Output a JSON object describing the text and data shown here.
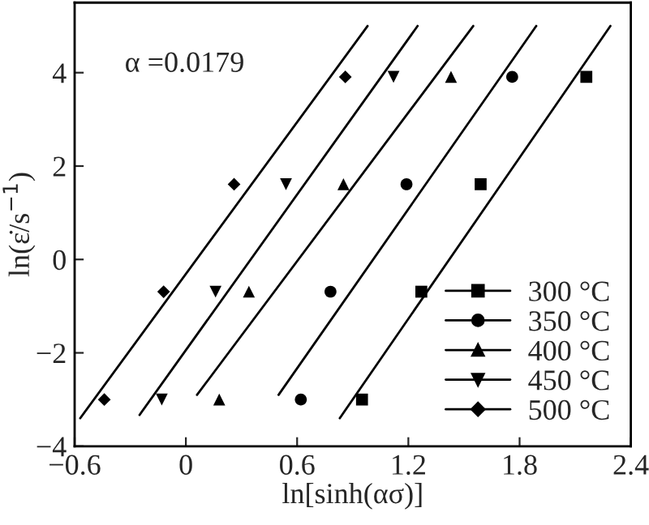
{
  "chart_data": {
    "type": "scatter",
    "xlabel": "ln[sinh(ασ)]",
    "ylabel": "ln(ε̇/s$^{−1}$)",
    "annotations": [
      "α =0.0179"
    ],
    "xlim": [
      -0.6,
      2.4
    ],
    "ylim": [
      -4,
      5.5
    ],
    "xticks": [
      -0.6,
      0,
      0.6,
      1.2,
      1.8,
      2.4
    ],
    "yticks": [
      -4,
      -2,
      0,
      2,
      4
    ],
    "grid": false,
    "legend": "bottom right",
    "series": [
      {
        "name": "300 °C",
        "color": "#000000",
        "marker": "square",
        "x": [
          0.95,
          1.27,
          1.59,
          2.16
        ],
        "values": [
          -3.0,
          -0.69,
          1.61,
          3.91
        ]
      },
      {
        "name": "350 °C",
        "color": "#000000",
        "marker": "circle",
        "x": [
          0.62,
          0.78,
          1.19,
          1.76
        ],
        "values": [
          -3.0,
          -0.69,
          1.61,
          3.91
        ]
      },
      {
        "name": "400 °C",
        "color": "#000000",
        "marker": "triangle",
        "x": [
          0.18,
          0.34,
          0.85,
          1.43
        ],
        "values": [
          -3.0,
          -0.69,
          1.61,
          3.91
        ]
      },
      {
        "name": "450 °C",
        "color": "#000000",
        "marker": "triangle_down",
        "x": [
          -0.13,
          0.16,
          0.54,
          1.12
        ],
        "values": [
          -3.0,
          -0.69,
          1.61,
          3.91
        ]
      },
      {
        "name": "500 °C",
        "color": "#000000",
        "marker": "diamond",
        "x": [
          -0.44,
          -0.12,
          0.26,
          0.86
        ],
        "values": [
          -3.0,
          -0.69,
          1.61,
          3.91
        ]
      },
      {
        "type": "line",
        "color": "#000000",
        "x": [
          0.83,
          2.29
        ],
        "values": [
          -3.4,
          5.0
        ]
      },
      {
        "type": "line",
        "color": "#000000",
        "x": [
          0.5,
          1.89
        ],
        "values": [
          -2.9,
          5.0
        ]
      },
      {
        "type": "line",
        "color": "#000000",
        "x": [
          0.06,
          1.55
        ],
        "values": [
          -2.9,
          5.0
        ]
      },
      {
        "type": "line",
        "color": "#000000",
        "x": [
          -0.25,
          1.25
        ],
        "values": [
          -3.33,
          5.0
        ]
      },
      {
        "type": "line",
        "color": "#000000",
        "x": [
          -0.57,
          0.98
        ],
        "values": [
          -3.4,
          5.0
        ]
      }
    ]
  }
}
